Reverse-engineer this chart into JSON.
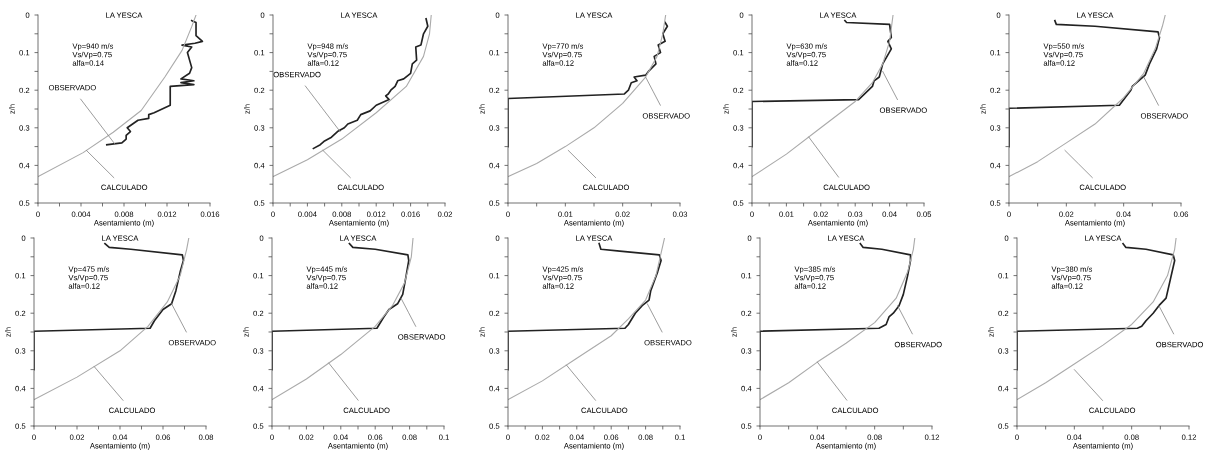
{
  "chart_data": [
    {
      "type": "line",
      "title": "LA YESCA",
      "xlabel": "Asentamiento (m)",
      "ylabel": "z/h",
      "xlim": [
        0,
        0.016
      ],
      "ylim": [
        0.5,
        0
      ],
      "xticks": [
        0,
        {
          "value": 0.002,
          "label": null
        },
        0.004,
        {
          "value": 0.006,
          "label": null
        },
        0.008,
        {
          "value": 0.01,
          "label": null
        },
        0.012,
        {
          "value": 0.014,
          "label": null
        },
        0.016
      ],
      "yticks": [
        0,
        {
          "value": 0.05,
          "label": null
        },
        0.1,
        {
          "value": 0.15,
          "label": null
        },
        0.2,
        {
          "value": 0.25,
          "label": null
        },
        0.3,
        {
          "value": 0.35,
          "label": null
        },
        0.4,
        {
          "value": 0.45,
          "label": null
        },
        0.5
      ],
      "series": [
        {
          "color": "#222222",
          "x": [
            0.0143,
            0.0147,
            0.0147,
            0.0153,
            0.0146,
            0.0134,
            0.0143,
            0.0139,
            0.0141,
            0.0143,
            0.0141,
            0.0133,
            0.0145,
            0.0133,
            0.0145,
            0.0123,
            0.0123,
            0.0108,
            0.0103,
            0.0103,
            0.0093,
            0.0088,
            0.0083,
            0.0086,
            0.0082,
            0.0082,
            0.0078,
            0.0064
          ],
          "values": [
            0.015,
            0.02,
            0.055,
            0.07,
            0.075,
            0.08,
            0.085,
            0.1,
            0.12,
            0.14,
            0.155,
            0.17,
            0.175,
            0.18,
            0.185,
            0.19,
            0.24,
            0.26,
            0.265,
            0.275,
            0.28,
            0.29,
            0.3,
            0.31,
            0.32,
            0.33,
            0.34,
            0.345
          ]
        },
        {
          "color": "#aaaaaa",
          "x": [
            0,
            0.0042,
            0.007,
            0.0096,
            0.0118,
            0.0134,
            0.0143,
            0.0147
          ],
          "values": [
            0.43,
            0.366,
            0.312,
            0.254,
            0.165,
            0.094,
            0.031,
            0
          ]
        }
      ],
      "annotations": [
        "Vp=940 m/s",
        "Vs/Vp=0.75",
        "alfa=0.14",
        {
          "text": "OBSERVADO",
          "x": 0.0072,
          "y": 0.345
        },
        {
          "text": "CALCULADO",
          "x": 0.0045,
          "y": 0.36
        }
      ]
    },
    {
      "type": "line",
      "title": "LA YESCA",
      "xlabel": "Asentamiento (m)",
      "ylabel": "z/h",
      "xlim": [
        0,
        0.02
      ],
      "ylim": [
        0.5,
        0
      ],
      "xticks": [
        0,
        {
          "value": 0.002,
          "label": null
        },
        0.004,
        {
          "value": 0.006,
          "label": null
        },
        0.008,
        {
          "value": 0.01,
          "label": null
        },
        0.012,
        {
          "value": 0.014,
          "label": null
        },
        0.016,
        {
          "value": 0.018,
          "label": null
        },
        0.02
      ],
      "yticks": [
        0,
        {
          "value": 0.05,
          "label": null
        },
        0.1,
        {
          "value": 0.15,
          "label": null
        },
        0.2,
        {
          "value": 0.25,
          "label": null
        },
        0.3,
        {
          "value": 0.35,
          "label": null
        },
        0.4,
        {
          "value": 0.45,
          "label": null
        },
        0.5
      ],
      "series": [
        {
          "color": "#222222",
          "x": [
            0.0178,
            0.018,
            0.0175,
            0.0172,
            0.0166,
            0.0167,
            0.0162,
            0.016,
            0.0152,
            0.0145,
            0.0142,
            0.0137,
            0.0134,
            0.0131,
            0.0135,
            0.012,
            0.0113,
            0.0102,
            0.0098,
            0.0087,
            0.0083,
            0.0075,
            0.0068,
            0.006,
            0.0055,
            0.0047
          ],
          "values": [
            0.01,
            0.03,
            0.05,
            0.08,
            0.085,
            0.12,
            0.13,
            0.155,
            0.17,
            0.175,
            0.19,
            0.2,
            0.21,
            0.215,
            0.225,
            0.24,
            0.255,
            0.265,
            0.28,
            0.29,
            0.3,
            0.31,
            0.325,
            0.335,
            0.345,
            0.355
          ]
        },
        {
          "color": "#aaaaaa",
          "x": [
            0,
            0.004,
            0.008,
            0.012,
            0.0155,
            0.0175,
            0.0182,
            0.0184
          ],
          "values": [
            0.43,
            0.385,
            0.33,
            0.26,
            0.19,
            0.11,
            0.05,
            0
          ]
        }
      ],
      "annotations": [
        "Vp=948 m/s",
        "Vs/Vp=0.75",
        "alfa=0.12",
        {
          "text": "OBSERVADO",
          "x": 0.0078,
          "y": 0.31
        },
        {
          "text": "CALCULADO",
          "x": 0.0058,
          "y": 0.36
        }
      ]
    },
    {
      "type": "line",
      "title": "LA YESCA",
      "xlabel": "Asentamiento (m)",
      "ylabel": "z/h",
      "xlim": [
        0,
        0.03
      ],
      "ylim": [
        0.5,
        0
      ],
      "xticks": [
        0,
        {
          "value": 0.005,
          "label": null
        },
        0.01,
        {
          "value": 0.015,
          "label": null
        },
        0.02,
        {
          "value": 0.025,
          "label": null
        },
        0.03
      ],
      "yticks": [
        0,
        {
          "value": 0.05,
          "label": null
        },
        0.1,
        {
          "value": 0.15,
          "label": null
        },
        0.2,
        {
          "value": 0.25,
          "label": null
        },
        0.3,
        {
          "value": 0.35,
          "label": null
        },
        0.4,
        {
          "value": 0.45,
          "label": null
        },
        0.5
      ],
      "series": [
        {
          "color": "#222222",
          "x": [
            0.0274,
            0.0278,
            0.027,
            0.0274,
            0.0262,
            0.0266,
            0.0255,
            0.0258,
            0.0245,
            0.024,
            0.022,
            0.0225,
            0.0215,
            0.021,
            0.0203,
            0,
            0
          ],
          "values": [
            0.02,
            0.03,
            0.05,
            0.07,
            0.08,
            0.1,
            0.11,
            0.13,
            0.15,
            0.16,
            0.165,
            0.175,
            0.18,
            0.2,
            0.21,
            0.222,
            0.35
          ]
        },
        {
          "color": "#aaaaaa",
          "x": [
            0,
            0.005,
            0.01,
            0.015,
            0.02,
            0.024,
            0.026,
            0.027,
            0.0275
          ],
          "values": [
            0.43,
            0.395,
            0.35,
            0.3,
            0.235,
            0.165,
            0.11,
            0.05,
            0
          ]
        }
      ],
      "annotations": [
        "Vp=770 m/s",
        "Vs/Vp=0.75",
        "alfa=0.12",
        {
          "text": "OBSERVADO",
          "x": 0.024,
          "y": 0.165
        },
        {
          "text": "CALCULADO",
          "x": 0.0105,
          "y": 0.36
        }
      ]
    },
    {
      "type": "line",
      "title": "LA YESCA",
      "xlabel": "Asentamiento (m)",
      "ylabel": "z/h",
      "xlim": [
        0,
        0.05
      ],
      "ylim": [
        0.5,
        0
      ],
      "xticks": [
        0,
        {
          "value": 0.005,
          "label": null
        },
        0.01,
        {
          "value": 0.015,
          "label": null
        },
        0.02,
        {
          "value": 0.025,
          "label": null
        },
        0.03,
        {
          "value": 0.035,
          "label": null
        },
        0.04,
        {
          "value": 0.045,
          "label": null
        },
        0.05
      ],
      "yticks": [
        0,
        {
          "value": 0.05,
          "label": null
        },
        0.1,
        {
          "value": 0.15,
          "label": null
        },
        0.2,
        {
          "value": 0.25,
          "label": null
        },
        0.3,
        {
          "value": 0.35,
          "label": null
        },
        0.4,
        {
          "value": 0.45,
          "label": null
        },
        0.5
      ],
      "series": [
        {
          "color": "#222222",
          "x": [
            0.027,
            0.0275,
            0.04,
            0.0405,
            0.0395,
            0.0405,
            0.038,
            0.037,
            0.0355,
            0.035,
            0.031,
            0,
            0
          ],
          "values": [
            0.015,
            0.02,
            0.025,
            0.06,
            0.07,
            0.09,
            0.13,
            0.165,
            0.175,
            0.19,
            0.225,
            0.23,
            0.35
          ]
        },
        {
          "color": "#aaaaaa",
          "x": [
            0,
            0.01,
            0.02,
            0.03,
            0.035,
            0.038,
            0.04,
            0.041
          ],
          "values": [
            0.43,
            0.37,
            0.3,
            0.23,
            0.18,
            0.13,
            0.07,
            0
          ]
        }
      ],
      "annotations": [
        "Vp=630 m/s",
        "Vs/Vp=0.75",
        "alfa=0.12",
        {
          "text": "OBSERVADO",
          "x": 0.038,
          "y": 0.15
        },
        {
          "text": "CALCULADO",
          "x": 0.0165,
          "y": 0.3245
        }
      ]
    },
    {
      "type": "line",
      "title": "LA YESCA",
      "xlabel": "Asentamiento (m)",
      "ylabel": "z/h",
      "xlim": [
        0,
        0.06
      ],
      "ylim": [
        0.5,
        0
      ],
      "xticks": [
        0,
        {
          "value": 0.01,
          "label": null
        },
        0.02,
        {
          "value": 0.03,
          "label": null
        },
        0.04,
        {
          "value": 0.05,
          "label": null
        },
        0.06
      ],
      "yticks": [
        0,
        {
          "value": 0.05,
          "label": null
        },
        0.1,
        {
          "value": 0.15,
          "label": null
        },
        0.2,
        {
          "value": 0.25,
          "label": null
        },
        0.3,
        {
          "value": 0.35,
          "label": null
        },
        0.4,
        {
          "value": 0.45,
          "label": null
        },
        0.5
      ],
      "series": [
        {
          "color": "#222222",
          "x": [
            0.016,
            0.0165,
            0.03,
            0.052,
            0.0525,
            0.0515,
            0.049,
            0.0475,
            0.043,
            0.0425,
            0.0385,
            0,
            0
          ],
          "values": [
            0.015,
            0.025,
            0.03,
            0.045,
            0.06,
            0.09,
            0.13,
            0.16,
            0.19,
            0.2,
            0.24,
            0.248,
            0.35
          ]
        },
        {
          "color": "#aaaaaa",
          "x": [
            0,
            0.01,
            0.02,
            0.03,
            0.04,
            0.047,
            0.051,
            0.0535,
            0.0545
          ],
          "values": [
            0.43,
            0.39,
            0.34,
            0.29,
            0.22,
            0.155,
            0.09,
            0.03,
            0
          ]
        }
      ],
      "annotations": [
        "Vp=550 m/s",
        "Vs/Vp=0.75",
        "alfa=0.12",
        {
          "text": "OBSERVADO",
          "x": 0.047,
          "y": 0.165
        },
        {
          "text": "CALCULADO",
          "x": 0.0195,
          "y": 0.36
        }
      ]
    },
    {
      "type": "line",
      "title": "LA YESCA",
      "xlabel": "Asentamiento (m)",
      "ylabel": "z/h",
      "xlim": [
        0,
        0.08
      ],
      "ylim": [
        0.5,
        0
      ],
      "xticks": [
        0,
        {
          "value": 0.01,
          "label": null
        },
        0.02,
        {
          "value": 0.03,
          "label": null
        },
        0.04,
        {
          "value": 0.05,
          "label": null
        },
        0.06,
        {
          "value": 0.07,
          "label": null
        },
        0.08
      ],
      "yticks": [
        0,
        {
          "value": 0.05,
          "label": null
        },
        0.1,
        {
          "value": 0.15,
          "label": null
        },
        0.2,
        {
          "value": 0.25,
          "label": null
        },
        0.3,
        {
          "value": 0.35,
          "label": null
        },
        0.4,
        {
          "value": 0.45,
          "label": null
        },
        0.5
      ],
      "series": [
        {
          "color": "#222222",
          "x": [
            0.033,
            0.035,
            0.045,
            0.069,
            0.0695,
            0.068,
            0.066,
            0.064,
            0.06,
            0.056,
            0.054,
            0,
            0
          ],
          "values": [
            0.015,
            0.025,
            0.03,
            0.045,
            0.06,
            0.09,
            0.14,
            0.175,
            0.19,
            0.22,
            0.24,
            0.248,
            0.35
          ]
        },
        {
          "color": "#aaaaaa",
          "x": [
            0,
            0.02,
            0.04,
            0.053,
            0.062,
            0.068,
            0.071,
            0.072
          ],
          "values": [
            0.43,
            0.37,
            0.3,
            0.235,
            0.17,
            0.1,
            0.03,
            0
          ]
        }
      ],
      "annotations": [
        "Vp=475 m/s",
        "Vs/Vp=0.75",
        "alfa=0.12",
        {
          "text": "OBSERVADO",
          "x": 0.064,
          "y": 0.175
        },
        {
          "text": "CALCULADO",
          "x": 0.028,
          "y": 0.342
        }
      ]
    },
    {
      "type": "line",
      "title": "LA YESCA",
      "xlabel": "Asentamiento (m)",
      "ylabel": "z/h",
      "xlim": [
        0,
        0.1
      ],
      "ylim": [
        0.5,
        0
      ],
      "xticks": [
        0,
        {
          "value": 0.01,
          "label": null
        },
        0.02,
        {
          "value": 0.03,
          "label": null
        },
        0.04,
        {
          "value": 0.05,
          "label": null
        },
        0.06,
        {
          "value": 0.07,
          "label": null
        },
        0.08,
        {
          "value": 0.09,
          "label": null
        },
        0.1
      ],
      "yticks": [
        0,
        {
          "value": 0.05,
          "label": null
        },
        0.1,
        {
          "value": 0.15,
          "label": null
        },
        0.2,
        {
          "value": 0.25,
          "label": null
        },
        0.3,
        {
          "value": 0.35,
          "label": null
        },
        0.4,
        {
          "value": 0.45,
          "label": null
        },
        0.5
      ],
      "series": [
        {
          "color": "#222222",
          "x": [
            0.045,
            0.047,
            0.06,
            0.079,
            0.0795,
            0.078,
            0.076,
            0.073,
            0.068,
            0.065,
            0.061,
            0,
            0
          ],
          "values": [
            0.015,
            0.025,
            0.03,
            0.045,
            0.06,
            0.1,
            0.15,
            0.175,
            0.19,
            0.21,
            0.24,
            0.248,
            0.35
          ]
        },
        {
          "color": "#aaaaaa",
          "x": [
            0,
            0.02,
            0.04,
            0.06,
            0.07,
            0.077,
            0.081,
            0.082
          ],
          "values": [
            0.43,
            0.375,
            0.31,
            0.235,
            0.18,
            0.12,
            0.05,
            0
          ]
        }
      ],
      "annotations": [
        "Vp=445 m/s",
        "Vs/Vp=0.75",
        "alfa=0.12",
        {
          "text": "OBSERVADO",
          "x": 0.075,
          "y": 0.16
        },
        {
          "text": "CALCULADO",
          "x": 0.033,
          "y": 0.3325
        }
      ]
    },
    {
      "type": "line",
      "title": "LA YESCA",
      "xlabel": "Asentamiento (m)",
      "ylabel": "z/h",
      "xlim": [
        0,
        0.1
      ],
      "ylim": [
        0.5,
        0
      ],
      "xticks": [
        0,
        {
          "value": 0.01,
          "label": null
        },
        0.02,
        {
          "value": 0.03,
          "label": null
        },
        0.04,
        {
          "value": 0.05,
          "label": null
        },
        0.06,
        {
          "value": 0.07,
          "label": null
        },
        0.08,
        {
          "value": 0.09,
          "label": null
        },
        0.1
      ],
      "yticks": [
        0,
        {
          "value": 0.05,
          "label": null
        },
        0.1,
        {
          "value": 0.15,
          "label": null
        },
        0.2,
        {
          "value": 0.25,
          "label": null
        },
        0.3,
        {
          "value": 0.35,
          "label": null
        },
        0.4,
        {
          "value": 0.45,
          "label": null
        },
        0.5
      ],
      "series": [
        {
          "color": "#222222",
          "x": [
            0.053,
            0.054,
            0.065,
            0.088,
            0.089,
            0.087,
            0.083,
            0.082,
            0.078,
            0.074,
            0.07,
            0.068,
            0,
            0
          ],
          "values": [
            0.015,
            0.03,
            0.035,
            0.045,
            0.06,
            0.09,
            0.14,
            0.165,
            0.18,
            0.2,
            0.23,
            0.24,
            0.248,
            0.35
          ]
        },
        {
          "color": "#aaaaaa",
          "x": [
            0,
            0.02,
            0.04,
            0.06,
            0.07,
            0.08,
            0.086,
            0.089,
            0.091
          ],
          "values": [
            0.43,
            0.38,
            0.32,
            0.26,
            0.215,
            0.165,
            0.1,
            0.04,
            0
          ]
        }
      ],
      "annotations": [
        "Vp=425 m/s",
        "Vs/Vp=0.75",
        "alfa=0.12",
        {
          "text": "OBSERVADO",
          "x": 0.081,
          "y": 0.175
        },
        {
          "text": "CALCULADO",
          "x": 0.034,
          "y": 0.338
        }
      ]
    },
    {
      "type": "line",
      "title": "LA YESCA",
      "xlabel": "Asentamiento (m)",
      "ylabel": "z/h",
      "xlim": [
        0,
        0.12
      ],
      "ylim": [
        0.5,
        0
      ],
      "xticks": [
        0,
        {
          "value": 0.02,
          "label": null
        },
        0.04,
        {
          "value": 0.06,
          "label": null
        },
        0.08,
        {
          "value": 0.1,
          "label": null
        },
        0.12
      ],
      "yticks": [
        0,
        {
          "value": 0.05,
          "label": null
        },
        0.1,
        {
          "value": 0.15,
          "label": null
        },
        0.2,
        {
          "value": 0.25,
          "label": null
        },
        0.3,
        {
          "value": 0.35,
          "label": null
        },
        0.4,
        {
          "value": 0.45,
          "label": null
        },
        0.5
      ],
      "series": [
        {
          "color": "#222222",
          "x": [
            0.07,
            0.072,
            0.085,
            0.105,
            0.105,
            0.103,
            0.1,
            0.097,
            0.093,
            0.09,
            0.088,
            0.083,
            0,
            0
          ],
          "values": [
            0.015,
            0.025,
            0.03,
            0.045,
            0.06,
            0.1,
            0.15,
            0.18,
            0.2,
            0.21,
            0.23,
            0.24,
            0.248,
            0.35
          ]
        },
        {
          "color": "#aaaaaa",
          "x": [
            0,
            0.02,
            0.04,
            0.06,
            0.08,
            0.095,
            0.103,
            0.107,
            0.108
          ],
          "values": [
            0.43,
            0.385,
            0.33,
            0.28,
            0.225,
            0.16,
            0.09,
            0.03,
            0
          ]
        }
      ],
      "annotations": [
        "Vp=385 m/s",
        "Vs/Vp=0.75",
        "alfa=0.12",
        {
          "text": "OBSERVADO",
          "x": 0.096,
          "y": 0.18
        },
        {
          "text": "CALCULADO",
          "x": 0.04,
          "y": 0.33
        }
      ]
    },
    {
      "type": "line",
      "title": "LA YESCA",
      "xlabel": "Asentamiento (m)",
      "ylabel": "z/h",
      "xlim": [
        0,
        0.12
      ],
      "ylim": [
        0.5,
        0
      ],
      "xticks": [
        0,
        {
          "value": 0.02,
          "label": null
        },
        0.04,
        {
          "value": 0.06,
          "label": null
        },
        0.08,
        {
          "value": 0.1,
          "label": null
        },
        0.12
      ],
      "yticks": [
        0,
        {
          "value": 0.05,
          "label": null
        },
        0.1,
        {
          "value": 0.15,
          "label": null
        },
        0.2,
        {
          "value": 0.25,
          "label": null
        },
        0.3,
        {
          "value": 0.35,
          "label": null
        },
        0.4,
        {
          "value": 0.45,
          "label": null
        },
        0.5
      ],
      "series": [
        {
          "color": "#222222",
          "x": [
            0.074,
            0.076,
            0.09,
            0.109,
            0.11,
            0.107,
            0.104,
            0.099,
            0.095,
            0.09,
            0.087,
            0.084,
            0,
            0
          ],
          "values": [
            0.015,
            0.025,
            0.03,
            0.045,
            0.06,
            0.11,
            0.16,
            0.18,
            0.2,
            0.22,
            0.235,
            0.24,
            0.248,
            0.35
          ]
        },
        {
          "color": "#aaaaaa",
          "x": [
            0,
            0.02,
            0.04,
            0.06,
            0.08,
            0.095,
            0.105,
            0.11,
            0.111
          ],
          "values": [
            0.43,
            0.385,
            0.335,
            0.285,
            0.23,
            0.17,
            0.1,
            0.03,
            0
          ]
        }
      ],
      "annotations": [
        "Vp=380 m/s",
        "Vs/Vp=0.75",
        "alfa=0.12",
        {
          "text": "OBSERVADO",
          "x": 0.099,
          "y": 0.18
        },
        {
          "text": "CALCULADO",
          "x": 0.04,
          "y": 0.35
        }
      ]
    }
  ]
}
